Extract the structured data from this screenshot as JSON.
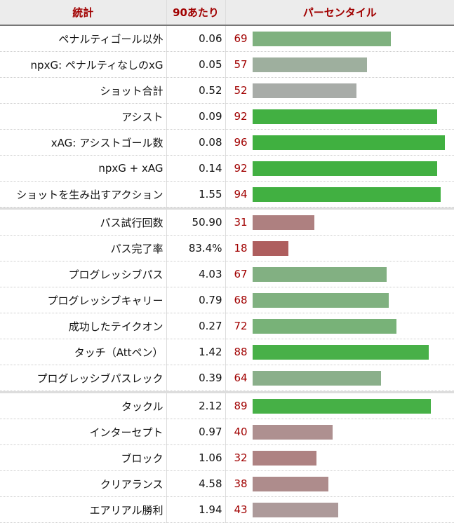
{
  "header": {
    "stat": "統計",
    "per90": "90あたり",
    "percentile": "パーセンタイル"
  },
  "sections": [
    [
      {
        "stat": "ペナルティゴール以外",
        "per90": "0.06",
        "pct": 69,
        "color": "#7fb17f"
      },
      {
        "stat": "npxG: ペナルティなしのxG",
        "per90": "0.05",
        "pct": 57,
        "color": "#9eaf9e"
      },
      {
        "stat": "ショット合計",
        "per90": "0.52",
        "pct": 52,
        "color": "#a8aca8"
      },
      {
        "stat": "アシスト",
        "per90": "0.09",
        "pct": 92,
        "color": "#42b042"
      },
      {
        "stat": "xAG: アシストゴール数",
        "per90": "0.08",
        "pct": 96,
        "color": "#40b040"
      },
      {
        "stat": "npxG + xAG",
        "per90": "0.14",
        "pct": 92,
        "color": "#42b042"
      },
      {
        "stat": "ショットを生み出すアクション",
        "per90": "1.55",
        "pct": 94,
        "color": "#41b041"
      }
    ],
    [
      {
        "stat": "パス試行回数",
        "per90": "50.90",
        "pct": 31,
        "color": "#ae8080"
      },
      {
        "stat": "パス完了率",
        "per90": "83.4%",
        "pct": 18,
        "color": "#ae5e5e"
      },
      {
        "stat": "プログレッシブパス",
        "per90": "4.03",
        "pct": 67,
        "color": "#82b082"
      },
      {
        "stat": "プログレッシブキャリー",
        "per90": "0.79",
        "pct": 68,
        "color": "#80b180"
      },
      {
        "stat": "成功したテイクオン",
        "per90": "0.27",
        "pct": 72,
        "color": "#78b278"
      },
      {
        "stat": "タッチ（Attペン）",
        "per90": "1.42",
        "pct": 88,
        "color": "#48b048"
      },
      {
        "stat": "プログレッシブパスレック",
        "per90": "0.39",
        "pct": 64,
        "color": "#8aaf8a"
      }
    ],
    [
      {
        "stat": "タックル",
        "per90": "2.12",
        "pct": 89,
        "color": "#46b046"
      },
      {
        "stat": "インターセプト",
        "per90": "0.97",
        "pct": 40,
        "color": "#ae9090"
      },
      {
        "stat": "ブロック",
        "per90": "1.06",
        "pct": 32,
        "color": "#ae8282"
      },
      {
        "stat": "クリアランス",
        "per90": "4.58",
        "pct": 38,
        "color": "#ae8c8c"
      },
      {
        "stat": "エアリアル勝利",
        "per90": "1.94",
        "pct": 43,
        "color": "#ad9a9a"
      }
    ]
  ]
}
